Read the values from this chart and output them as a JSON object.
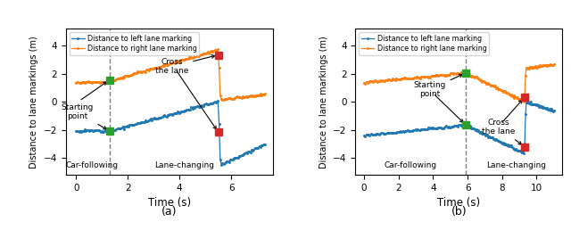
{
  "fig_width": 6.4,
  "fig_height": 2.58,
  "dpi": 100,
  "subplot_a": {
    "title": "(a)",
    "xlabel": "Time (s)",
    "ylabel": "Distance to lane markings (m)",
    "xlim": [
      -0.4,
      7.6
    ],
    "ylim": [
      -5.2,
      5.2
    ],
    "yticks": [
      -4,
      -2,
      0,
      2,
      4
    ],
    "xticks": [
      0,
      2,
      4,
      6
    ],
    "dashed_x": 1.3,
    "blue_color": "#1f77b4",
    "orange_color": "#ff7f0e",
    "green_marker_color": "#2ca02c",
    "red_marker_color": "#d62728"
  },
  "subplot_b": {
    "title": "(b)",
    "xlabel": "Time (s)",
    "ylabel": "Distance to lane markings (m)",
    "xlim": [
      -0.5,
      11.5
    ],
    "ylim": [
      -5.2,
      5.2
    ],
    "yticks": [
      -4,
      -2,
      0,
      2,
      4
    ],
    "xticks": [
      0,
      2,
      4,
      6,
      8,
      10
    ],
    "dashed_x": 5.9,
    "blue_color": "#1f77b4",
    "orange_color": "#ff7f0e",
    "green_marker_color": "#2ca02c",
    "red_marker_color": "#d62728"
  },
  "legend_labels": [
    "Distance to left lane marking",
    "Distance to right lane marking"
  ]
}
